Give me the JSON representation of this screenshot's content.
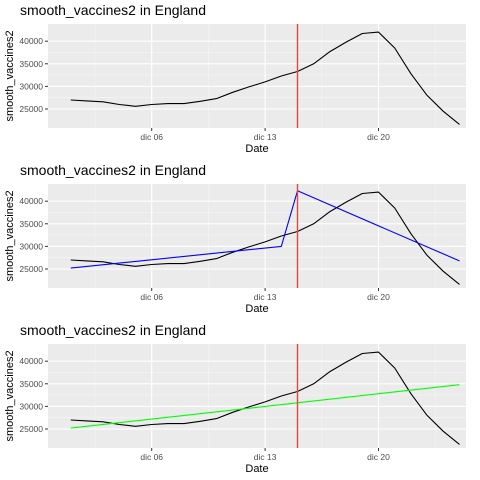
{
  "chart_data": [
    {
      "type": "line",
      "title": "smooth_vaccines2 in England",
      "xlabel": "Date",
      "ylabel": "smooth_vaccines2",
      "x_tick_labels": [
        "dic 06",
        "dic 13",
        "dic 20"
      ],
      "x_tick_positions": [
        6,
        13,
        20
      ],
      "y_ticks": [
        25000,
        30000,
        35000,
        40000
      ],
      "xlim": [
        -0.4,
        25.4
      ],
      "ylim": [
        20800,
        43800
      ],
      "grid": true,
      "vline": {
        "x": 15,
        "color": "#e8473c"
      },
      "series": [
        {
          "color": "#000000",
          "x": [
            1,
            2,
            3,
            4,
            5,
            6,
            7,
            8,
            9,
            10,
            11,
            12,
            13,
            14,
            15,
            16,
            17,
            18,
            19,
            20,
            21,
            22,
            23,
            24,
            25
          ],
          "values": [
            27000,
            26800,
            26600,
            26000,
            25600,
            26000,
            26200,
            26200,
            26700,
            27300,
            28700,
            29900,
            31000,
            32300,
            33300,
            35000,
            37700,
            39800,
            41700,
            42000,
            38500,
            32800,
            28000,
            24500,
            21600
          ]
        }
      ]
    },
    {
      "type": "line",
      "title": "smooth_vaccines2 in England",
      "xlabel": "Date",
      "ylabel": "smooth_vaccines2",
      "x_tick_labels": [
        "dic 06",
        "dic 13",
        "dic 20"
      ],
      "x_tick_positions": [
        6,
        13,
        20
      ],
      "y_ticks": [
        25000,
        30000,
        35000,
        40000
      ],
      "xlim": [
        -0.4,
        25.4
      ],
      "ylim": [
        20800,
        43800
      ],
      "grid": true,
      "vline": {
        "x": 15,
        "color": "#e8473c"
      },
      "series": [
        {
          "color": "#000000",
          "x": [
            1,
            2,
            3,
            4,
            5,
            6,
            7,
            8,
            9,
            10,
            11,
            12,
            13,
            14,
            15,
            16,
            17,
            18,
            19,
            20,
            21,
            22,
            23,
            24,
            25
          ],
          "values": [
            27000,
            26800,
            26600,
            26000,
            25600,
            26000,
            26200,
            26200,
            26700,
            27300,
            28700,
            29900,
            31000,
            32300,
            33300,
            35000,
            37700,
            39800,
            41700,
            42000,
            38500,
            32800,
            28000,
            24500,
            21600
          ]
        },
        {
          "color": "#0000ff",
          "x": [
            1,
            14,
            15,
            25
          ],
          "values": [
            25200,
            30000,
            42300,
            26800
          ]
        }
      ]
    },
    {
      "type": "line",
      "title": "smooth_vaccines2 in England",
      "xlabel": "Date",
      "ylabel": "smooth_vaccines2",
      "x_tick_labels": [
        "dic 06",
        "dic 13",
        "dic 20"
      ],
      "x_tick_positions": [
        6,
        13,
        20
      ],
      "y_ticks": [
        25000,
        30000,
        35000,
        40000
      ],
      "xlim": [
        -0.4,
        25.4
      ],
      "ylim": [
        20800,
        43800
      ],
      "grid": true,
      "vline": {
        "x": 15,
        "color": "#e8473c"
      },
      "series": [
        {
          "color": "#000000",
          "x": [
            1,
            2,
            3,
            4,
            5,
            6,
            7,
            8,
            9,
            10,
            11,
            12,
            13,
            14,
            15,
            16,
            17,
            18,
            19,
            20,
            21,
            22,
            23,
            24,
            25
          ],
          "values": [
            27000,
            26800,
            26600,
            26000,
            25600,
            26000,
            26200,
            26200,
            26700,
            27300,
            28700,
            29900,
            31000,
            32300,
            33300,
            35000,
            37700,
            39800,
            41700,
            42000,
            38500,
            32800,
            28000,
            24500,
            21600
          ]
        },
        {
          "color": "#00ff00",
          "x": [
            1,
            25
          ],
          "values": [
            25200,
            34800
          ]
        }
      ]
    }
  ]
}
